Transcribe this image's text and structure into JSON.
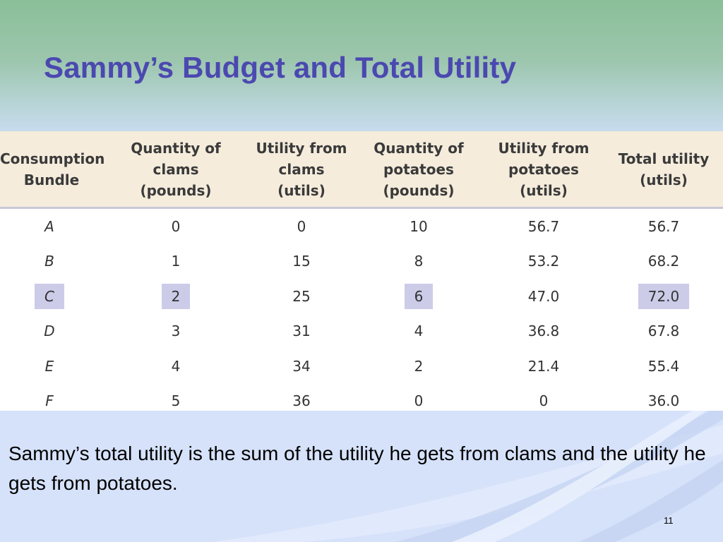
{
  "slide": {
    "title": "Sammy’s Budget and Total Utility",
    "body": "Sammy’s total utility is the sum of the utility he gets from clams and the utility he gets from potatoes.",
    "page_number": "11"
  },
  "table": {
    "headers": [
      [
        "Consumption",
        "Bundle"
      ],
      [
        "Quantity of",
        "clams",
        "(pounds)"
      ],
      [
        "Utility from",
        "clams",
        "(utils)"
      ],
      [
        "Quantity of",
        "potatoes",
        "(pounds)"
      ],
      [
        "Utility from",
        "potatoes",
        "(utils)"
      ],
      [
        "Total utility",
        "(utils)"
      ]
    ],
    "rows": [
      [
        "A",
        "0",
        "0",
        "10",
        "56.7",
        "56.7"
      ],
      [
        "B",
        "1",
        "15",
        "8",
        "53.2",
        "68.2"
      ],
      [
        "C",
        "2",
        "25",
        "6",
        "47.0",
        "72.0"
      ],
      [
        "D",
        "3",
        "31",
        "4",
        "36.8",
        "67.8"
      ],
      [
        "E",
        "4",
        "34",
        "2",
        "21.4",
        "55.4"
      ],
      [
        "F",
        "5",
        "36",
        "0",
        "0",
        "36.0"
      ]
    ],
    "highlighted_row": "C",
    "highlight_color": "#cccbe8"
  },
  "colors": {
    "title": "#4b48b0",
    "header_background": "#f5ecdc",
    "slide_background": "#d6e2fa",
    "top_band": "#8abf99"
  }
}
